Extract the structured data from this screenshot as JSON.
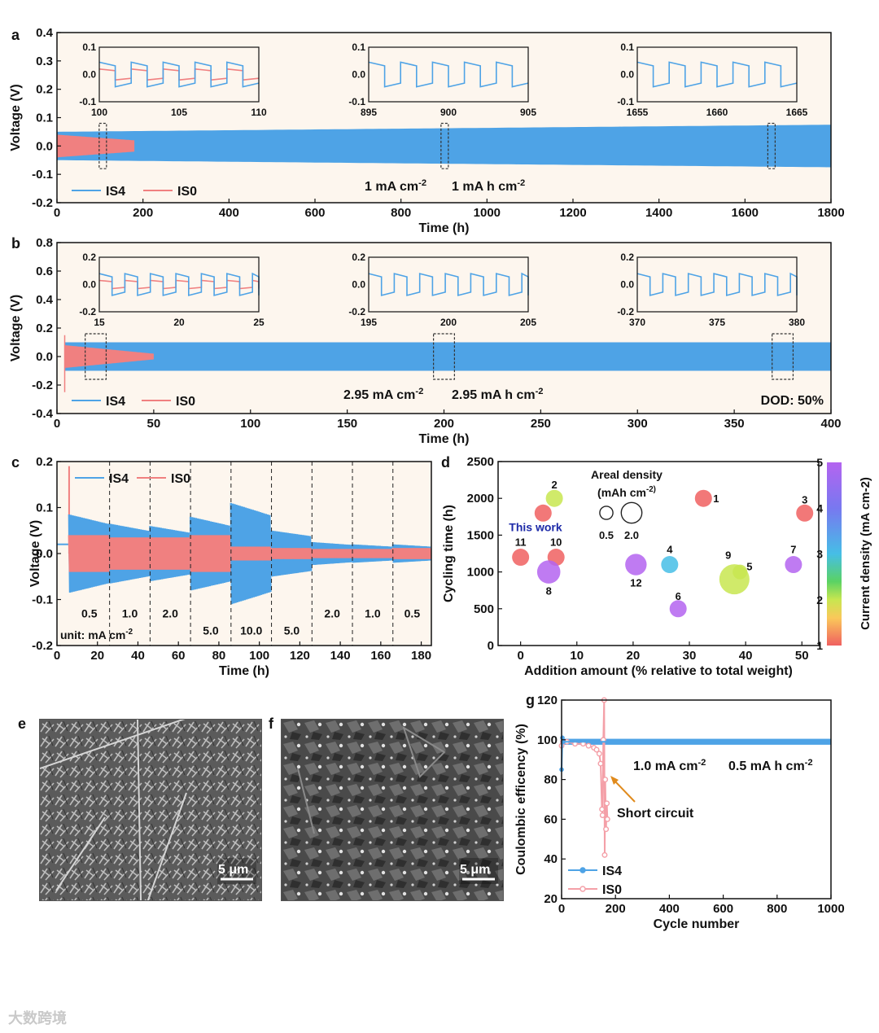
{
  "figure": {
    "panel_letters": [
      "a",
      "b",
      "c",
      "d",
      "e",
      "f",
      "g"
    ],
    "scale_bar_label": "5 μm",
    "watermark": "大数跨境"
  },
  "chart_data": [
    {
      "panel": "a",
      "type": "line",
      "xlabel": "Time (h)",
      "ylabel": "Voltage (V)",
      "xlim": [
        0,
        1800
      ],
      "ylim": [
        -0.2,
        0.4
      ],
      "xticks": [
        0,
        200,
        400,
        600,
        800,
        1000,
        1200,
        1400,
        1600,
        1800
      ],
      "yticks": [
        -0.2,
        -0.1,
        0.0,
        0.1,
        0.2,
        0.3,
        0.4
      ],
      "series": [
        {
          "name": "IS4",
          "color": "#4ea3e6",
          "x_range": [
            0,
            1800
          ],
          "envelope_start": 0.05,
          "envelope_end": 0.075
        },
        {
          "name": "IS0",
          "color": "#f08080",
          "x_range": [
            0,
            180
          ],
          "envelope": 0.04
        }
      ],
      "annotations": [
        "1 mA cm",
        "1 mA h cm"
      ],
      "boxed_regions": [
        [
          100,
          110
        ],
        [
          895,
          905
        ],
        [
          1655,
          1665
        ]
      ],
      "insets": [
        {
          "xlim": [
            100,
            110
          ],
          "ylim": [
            -0.1,
            0.1
          ],
          "xticks": [
            100,
            105,
            110
          ],
          "yticks": [
            0.1,
            0.0,
            -0.1
          ],
          "series": [
            "IS4",
            "IS0"
          ]
        },
        {
          "xlim": [
            895,
            905
          ],
          "ylim": [
            -0.1,
            0.1
          ],
          "xticks": [
            895,
            900,
            905
          ],
          "yticks": [
            0.1,
            0.0,
            -0.1
          ],
          "series": [
            "IS4"
          ]
        },
        {
          "xlim": [
            1655,
            1665
          ],
          "ylim": [
            -0.1,
            0.1
          ],
          "xticks": [
            1655,
            1660,
            1665
          ],
          "yticks": [
            0.1,
            0.0,
            -0.1
          ],
          "series": [
            "IS4"
          ]
        }
      ]
    },
    {
      "panel": "b",
      "type": "line",
      "xlabel": "Time (h)",
      "ylabel": "Voltage (V)",
      "xlim": [
        0,
        400
      ],
      "ylim": [
        -0.4,
        0.8
      ],
      "xticks": [
        0,
        50,
        100,
        150,
        200,
        250,
        300,
        350,
        400
      ],
      "yticks": [
        -0.4,
        -0.2,
        0.0,
        0.2,
        0.4,
        0.6,
        0.8
      ],
      "series": [
        {
          "name": "IS4",
          "color": "#4ea3e6",
          "x_range": [
            0,
            400
          ],
          "envelope": 0.1
        },
        {
          "name": "IS0",
          "color": "#f08080",
          "x_range": [
            0,
            50
          ],
          "envelope": 0.08
        }
      ],
      "annotations": [
        "2.95 mA cm",
        "2.95 mA h cm",
        "DOD: 50%"
      ],
      "boxed_regions": [
        [
          15,
          25
        ],
        [
          195,
          205
        ],
        [
          370,
          380
        ]
      ],
      "insets": [
        {
          "xlim": [
            15,
            25
          ],
          "ylim": [
            -0.2,
            0.2
          ],
          "xticks": [
            15,
            20,
            25
          ],
          "yticks": [
            0.2,
            0.0,
            -0.2
          ],
          "series": [
            "IS4",
            "IS0"
          ]
        },
        {
          "xlim": [
            195,
            205
          ],
          "ylim": [
            -0.2,
            0.2
          ],
          "xticks": [
            195,
            200,
            205
          ],
          "yticks": [
            0.2,
            0.0,
            -0.2
          ],
          "series": [
            "IS4"
          ]
        },
        {
          "xlim": [
            370,
            380
          ],
          "ylim": [
            -0.2,
            0.2
          ],
          "xticks": [
            370,
            375,
            380
          ],
          "yticks": [
            0.2,
            0.0,
            -0.2
          ],
          "series": [
            "IS4"
          ]
        }
      ]
    },
    {
      "panel": "c",
      "type": "line",
      "xlabel": "Time (h)",
      "ylabel": "Voltage (V)",
      "xlim": [
        0,
        185
      ],
      "ylim": [
        -0.2,
        0.2
      ],
      "xticks": [
        0,
        20,
        40,
        60,
        80,
        100,
        120,
        140,
        160,
        180
      ],
      "yticks": [
        -0.2,
        -0.1,
        0.0,
        0.1,
        0.2
      ],
      "series": [
        {
          "name": "IS4",
          "color": "#4ea3e6"
        },
        {
          "name": "IS0",
          "color": "#f08080"
        }
      ],
      "segment_boundaries": [
        6,
        26,
        46,
        66,
        86,
        106,
        126,
        146,
        166,
        185
      ],
      "current_densities": [
        "0.5",
        "1.0",
        "2.0",
        "5.0",
        "10.0",
        "5.0",
        "2.0",
        "1.0",
        "0.5"
      ],
      "is4_amplitude": [
        0.085,
        0.065,
        0.06,
        0.08,
        0.11,
        0.05,
        0.025,
        0.02,
        0.02
      ],
      "is0_amplitude": [
        0.04,
        0.035,
        0.035,
        0.04,
        0.015,
        0.012,
        0.01,
        0.01,
        0.012
      ],
      "unit_label": "unit: mA cm"
    },
    {
      "panel": "d",
      "type": "scatter",
      "xlabel": "Addition amount (% relative to total weight)",
      "ylabel": "Cycling time (h)",
      "xlim": [
        -4,
        53
      ],
      "ylim": [
        0,
        2500
      ],
      "xticks": [
        0,
        10,
        20,
        30,
        40,
        50
      ],
      "yticks": [
        0,
        500,
        1000,
        1500,
        2000,
        2500
      ],
      "colorbar": {
        "label": "Current density (mA cm-2)",
        "min": 1,
        "max": 5,
        "ticks": [
          1,
          2,
          3,
          4,
          5
        ]
      },
      "size_legend": {
        "title": "Areal density",
        "unit": "(mAh cm",
        "values": [
          0.5,
          2.0
        ]
      },
      "highlight_label": "This work",
      "points": [
        {
          "label": "1",
          "x": 32.5,
          "y": 2000,
          "current": 1.0,
          "areal": 1.0
        },
        {
          "label": "2",
          "x": 6,
          "y": 2000,
          "current": 2.0,
          "areal": 1.0
        },
        {
          "label": "3",
          "x": 50.5,
          "y": 1800,
          "current": 1.0,
          "areal": 1.0
        },
        {
          "label": "This work",
          "x": 4,
          "y": 1800,
          "current": 1.0,
          "areal": 1.0
        },
        {
          "label": "11",
          "x": 0,
          "y": 1200,
          "current": 1.0,
          "areal": 1.0
        },
        {
          "label": "10",
          "x": 6.3,
          "y": 1200,
          "current": 1.0,
          "areal": 1.0
        },
        {
          "label": "8",
          "x": 5,
          "y": 1000,
          "current": 5.0,
          "areal": 2.5
        },
        {
          "label": "12",
          "x": 20.5,
          "y": 1100,
          "current": 5.0,
          "areal": 2.0
        },
        {
          "label": "4",
          "x": 26.5,
          "y": 1100,
          "current": 3.0,
          "areal": 1.0
        },
        {
          "label": "6",
          "x": 28,
          "y": 500,
          "current": 5.0,
          "areal": 1.0
        },
        {
          "label": "9",
          "x": 38,
          "y": 900,
          "current": 2.0,
          "areal": 5.0
        },
        {
          "label": "5",
          "x": 39,
          "y": 1000,
          "current": 2.0,
          "areal": 0.6
        },
        {
          "label": "7",
          "x": 48.5,
          "y": 1100,
          "current": 5.0,
          "areal": 1.0
        }
      ]
    },
    {
      "panel": "g",
      "type": "line",
      "xlabel": "Cycle number",
      "ylabel": "Coulombic efficency (%)",
      "xlim": [
        0,
        1000
      ],
      "ylim": [
        20,
        120
      ],
      "xticks": [
        0,
        200,
        400,
        600,
        800,
        1000
      ],
      "yticks": [
        20,
        40,
        60,
        80,
        100,
        120
      ],
      "series": [
        {
          "name": "IS4",
          "color": "#4ea3e6",
          "x": [
            0,
            3,
            6,
            10,
            20,
            60,
            150,
            300,
            500,
            700,
            900,
            1000
          ],
          "y": [
            85,
            101,
            99,
            99,
            99,
            99,
            99,
            99,
            99,
            99,
            99,
            99
          ]
        },
        {
          "name": "IS0",
          "color": "#f4a0a8",
          "x": [
            0,
            5,
            20,
            50,
            80,
            100,
            120,
            130,
            140,
            145,
            150,
            152,
            155,
            158,
            160,
            162,
            165,
            168,
            170
          ],
          "y": [
            97,
            99,
            99,
            98,
            98,
            97,
            96,
            95,
            93,
            88,
            65,
            62,
            100,
            120,
            42,
            80,
            55,
            68,
            60
          ]
        }
      ],
      "annotations": [
        "1.0 mA cm",
        "0.5 mA h cm",
        "Short circuit"
      ]
    }
  ]
}
